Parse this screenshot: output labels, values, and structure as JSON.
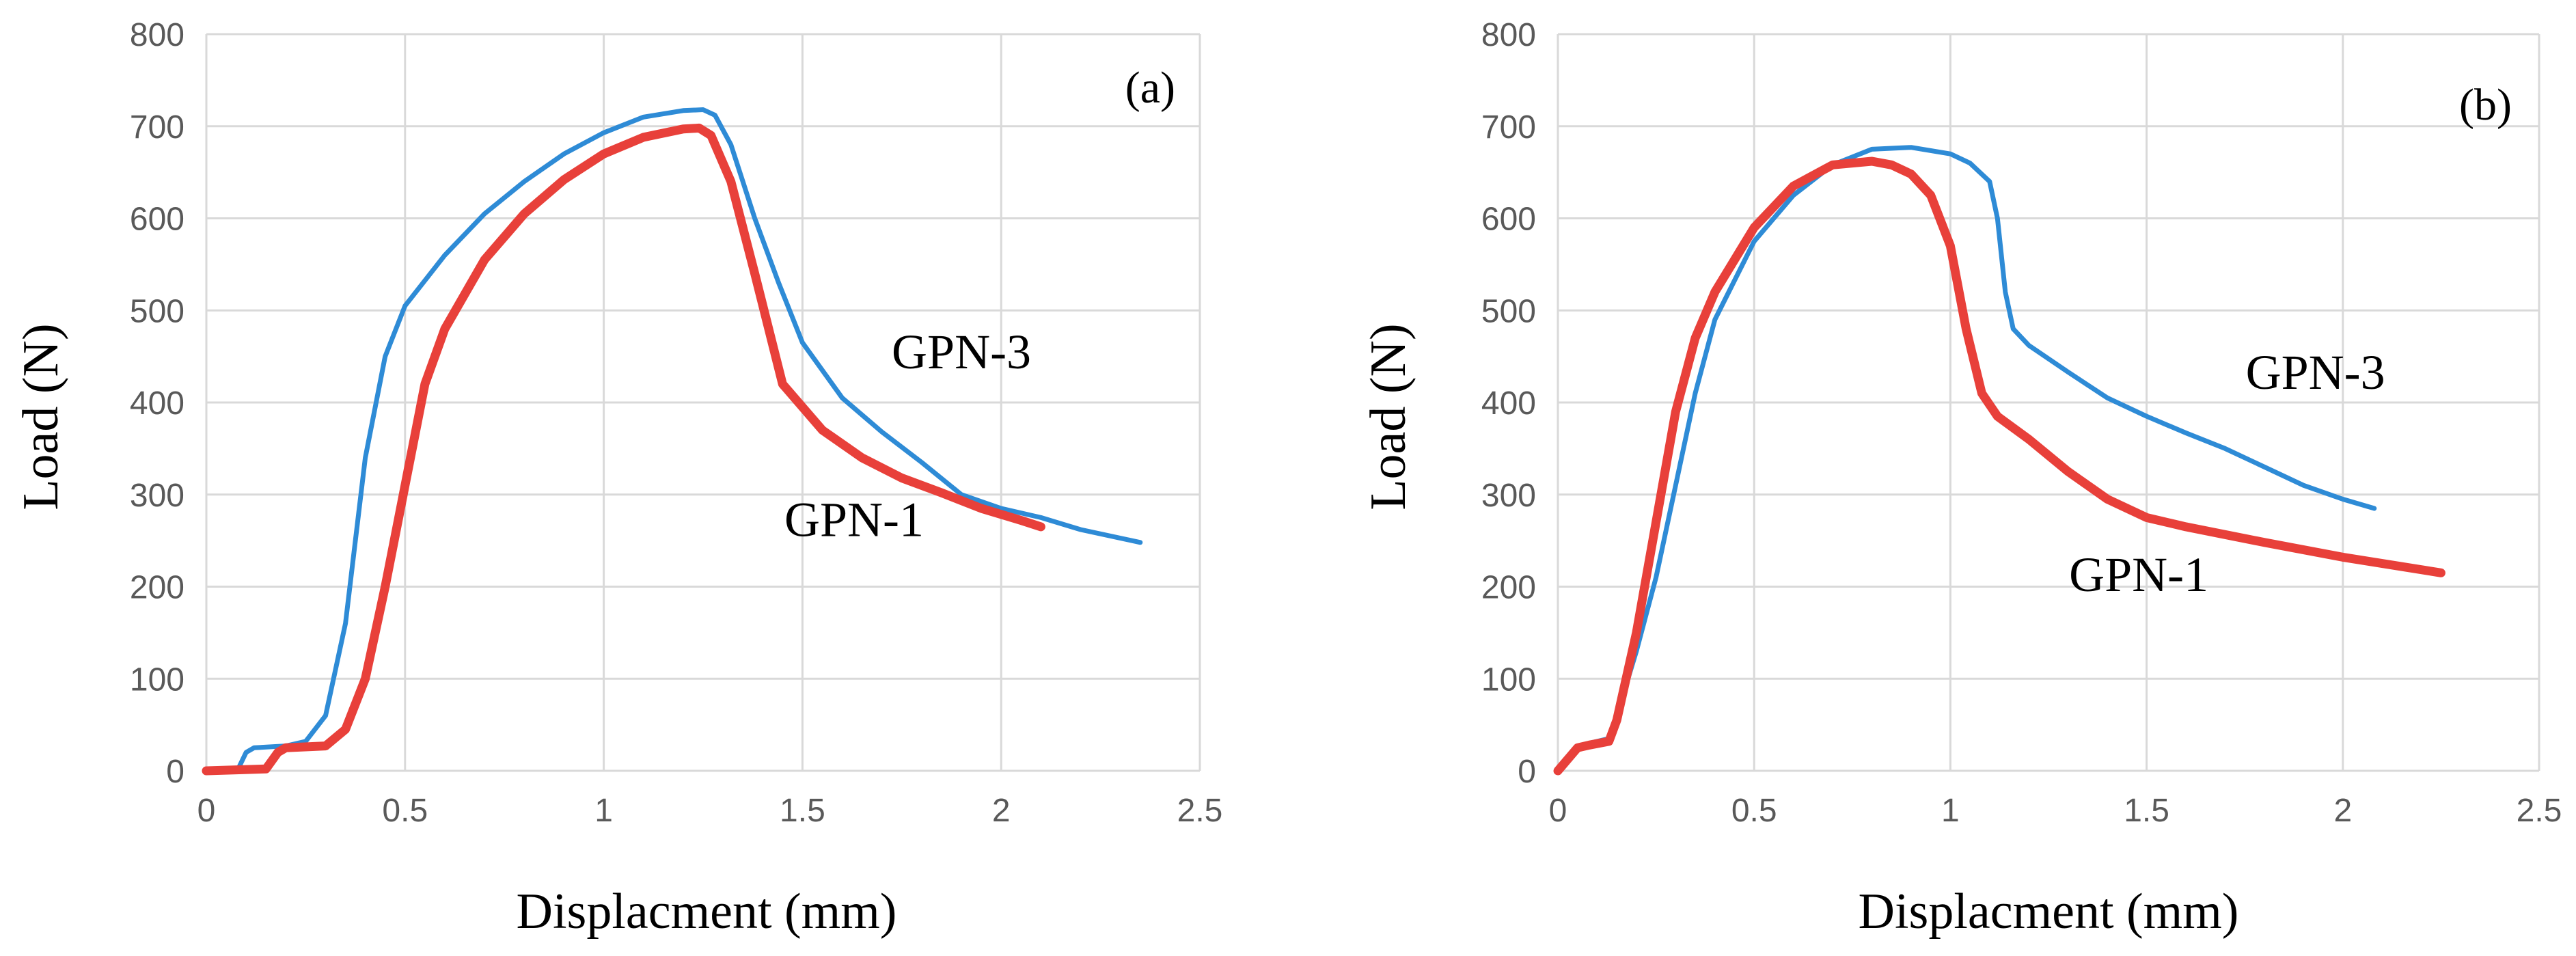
{
  "chart_data": [
    {
      "type": "line",
      "panel_label": "(a)",
      "xlabel": "Displacment (mm)",
      "ylabel": "Load (N)",
      "xlim": [
        0,
        2.5
      ],
      "ylim": [
        0,
        800
      ],
      "x_ticks": [
        0,
        0.5,
        1,
        1.5,
        2,
        2.5
      ],
      "x_tick_labels": [
        "0",
        "0.5",
        "1",
        "1.5",
        "2",
        "2.5"
      ],
      "y_ticks": [
        0,
        100,
        200,
        300,
        400,
        500,
        600,
        700,
        800
      ],
      "y_tick_labels": [
        "0",
        "100",
        "200",
        "300",
        "400",
        "500",
        "600",
        "700",
        "800"
      ],
      "grid": true,
      "legend": "none",
      "series": [
        {
          "name": "GPN-3",
          "color": "#2e8bd6",
          "x": [
            0,
            0.08,
            0.1,
            0.12,
            0.2,
            0.25,
            0.3,
            0.35,
            0.4,
            0.45,
            0.5,
            0.6,
            0.7,
            0.8,
            0.9,
            1.0,
            1.1,
            1.2,
            1.25,
            1.28,
            1.32,
            1.38,
            1.44,
            1.5,
            1.6,
            1.7,
            1.8,
            1.9,
            2.0,
            2.1,
            2.2,
            2.35
          ],
          "y": [
            0,
            2,
            20,
            25,
            27,
            32,
            60,
            160,
            340,
            450,
            505,
            560,
            605,
            640,
            670,
            693,
            710,
            717,
            718,
            712,
            680,
            600,
            530,
            465,
            405,
            368,
            335,
            300,
            285,
            275,
            262,
            248
          ]
        },
        {
          "name": "GPN-1",
          "color": "#e8403a",
          "x": [
            0,
            0.15,
            0.18,
            0.2,
            0.3,
            0.35,
            0.4,
            0.45,
            0.5,
            0.55,
            0.6,
            0.7,
            0.8,
            0.9,
            1.0,
            1.1,
            1.2,
            1.24,
            1.27,
            1.32,
            1.38,
            1.45,
            1.55,
            1.65,
            1.75,
            1.85,
            1.95,
            2.05,
            2.1
          ],
          "y": [
            0,
            2,
            20,
            25,
            27,
            45,
            100,
            200,
            310,
            420,
            480,
            555,
            605,
            642,
            670,
            688,
            697,
            698,
            690,
            640,
            540,
            420,
            370,
            340,
            318,
            302,
            285,
            272,
            265
          ]
        }
      ],
      "annotations": [
        {
          "text": "GPN-3",
          "x": 1.9,
          "y": 437
        },
        {
          "text": "GPN-1",
          "x": 1.63,
          "y": 255
        }
      ]
    },
    {
      "type": "line",
      "panel_label": "(b)",
      "xlabel": "Displacment (mm)",
      "ylabel": "Load (N)",
      "xlim": [
        0,
        2.5
      ],
      "ylim": [
        0,
        800
      ],
      "x_ticks": [
        0,
        0.5,
        1,
        1.5,
        2,
        2.5
      ],
      "x_tick_labels": [
        "0",
        "0.5",
        "1",
        "1.5",
        "2",
        "2.5"
      ],
      "y_ticks": [
        0,
        100,
        200,
        300,
        400,
        500,
        600,
        700,
        800
      ],
      "y_tick_labels": [
        "0",
        "100",
        "200",
        "300",
        "400",
        "500",
        "600",
        "700",
        "800"
      ],
      "grid": true,
      "legend": "none",
      "series": [
        {
          "name": "GPN-3",
          "color": "#2e8bd6",
          "x": [
            0,
            0.03,
            0.05,
            0.08,
            0.13,
            0.15,
            0.2,
            0.25,
            0.3,
            0.35,
            0.4,
            0.5,
            0.6,
            0.7,
            0.8,
            0.9,
            1.0,
            1.05,
            1.1,
            1.12,
            1.14,
            1.16,
            1.2,
            1.3,
            1.4,
            1.5,
            1.6,
            1.7,
            1.8,
            1.9,
            2.0,
            2.08
          ],
          "y": [
            0,
            15,
            25,
            30,
            35,
            60,
            130,
            210,
            310,
            410,
            490,
            575,
            625,
            658,
            675,
            677,
            670,
            660,
            640,
            600,
            520,
            480,
            462,
            433,
            405,
            385,
            367,
            350,
            330,
            310,
            295,
            285
          ]
        },
        {
          "name": "GPN-1",
          "color": "#e8403a",
          "x": [
            0,
            0.03,
            0.05,
            0.08,
            0.13,
            0.15,
            0.2,
            0.25,
            0.3,
            0.35,
            0.4,
            0.5,
            0.6,
            0.7,
            0.8,
            0.85,
            0.9,
            0.95,
            1.0,
            1.04,
            1.08,
            1.12,
            1.2,
            1.3,
            1.4,
            1.5,
            1.6,
            1.8,
            2.0,
            2.25
          ],
          "y": [
            0,
            15,
            25,
            28,
            32,
            55,
            150,
            270,
            390,
            470,
            520,
            590,
            635,
            658,
            662,
            658,
            648,
            625,
            570,
            480,
            410,
            385,
            360,
            325,
            295,
            275,
            265,
            248,
            232,
            215
          ]
        }
      ],
      "annotations": [
        {
          "text": "GPN-3",
          "x": 1.93,
          "y": 415
        },
        {
          "text": "GPN-1",
          "x": 1.48,
          "y": 195
        }
      ]
    }
  ]
}
